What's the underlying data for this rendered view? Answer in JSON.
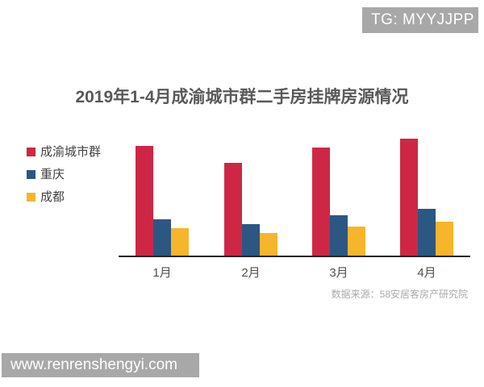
{
  "badge": {
    "text": "TG: MYYJJPP"
  },
  "title": "2019年1-4月成渝城市群二手房挂牌房源情况",
  "source_note": "数据来源：58安居客房产研究院",
  "footer": {
    "url": "www.renrenshengyi.com"
  },
  "colors": {
    "series_chengyu": "#ce2745",
    "series_chongqing": "#2c5783",
    "series_chengdu": "#f7b52c",
    "watermark_gray": "#a8a8a8"
  },
  "chart_data": {
    "type": "bar",
    "title": "2019年1-4月成渝城市群二手房挂牌房源情况",
    "categories": [
      "1月",
      "2月",
      "3月",
      "4月"
    ],
    "series": [
      {
        "name": "成渝城市群",
        "color": "#ce2745",
        "values": [
          136,
          115,
          134,
          145
        ]
      },
      {
        "name": "重庆",
        "color": "#2c5783",
        "values": [
          45,
          39,
          50,
          58
        ]
      },
      {
        "name": "成都",
        "color": "#f7b52c",
        "values": [
          34,
          28,
          36,
          42
        ]
      }
    ],
    "value_axis": {
      "visible": false,
      "note": "no y-axis, gridlines or data labels shown; values are relative bar heights estimated in pixels"
    },
    "legend_position": "left",
    "grid": false,
    "source": "数据来源：58安居客房产研究院"
  }
}
